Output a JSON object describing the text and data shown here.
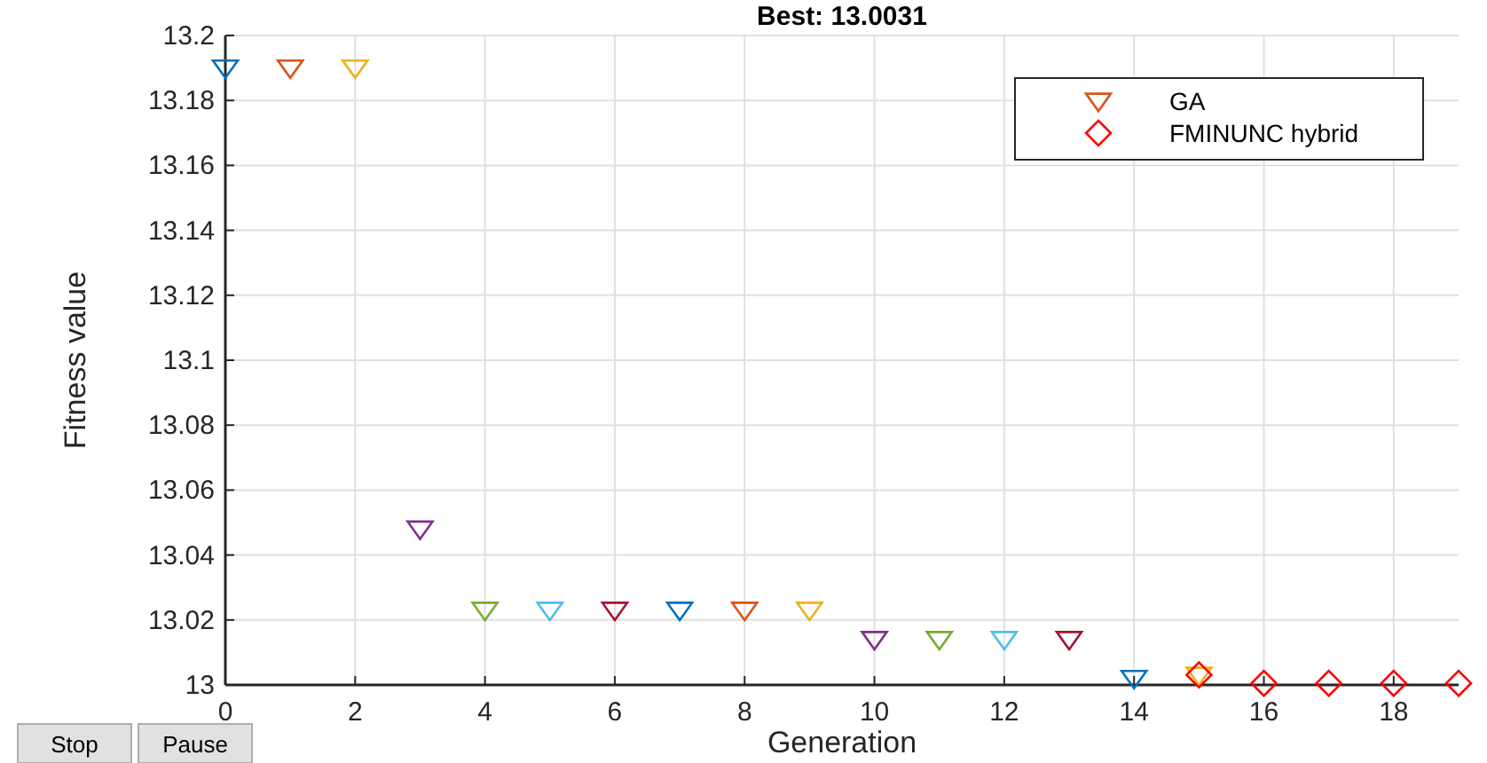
{
  "chart_data": {
    "type": "scatter",
    "title": "Best: 13.0031",
    "xlabel": "Generation",
    "ylabel": "Fitness value",
    "xlim": [
      0,
      19
    ],
    "xticks": [
      0,
      2,
      4,
      6,
      8,
      10,
      12,
      14,
      16,
      18
    ],
    "ylim": [
      13,
      13.2
    ],
    "yticks": [
      13,
      13.02,
      13.04,
      13.06,
      13.08,
      13.1,
      13.12,
      13.14,
      13.16,
      13.18,
      13.2
    ],
    "grid": true,
    "legend": "top right",
    "series": [
      {
        "name": "GA",
        "color": "#d95319",
        "marker": "triangle",
        "x": [
          0,
          1,
          2,
          3,
          4,
          5,
          6,
          7,
          8,
          9,
          10,
          11,
          12,
          13,
          14,
          15
        ],
        "values": [
          13.19,
          13.19,
          13.19,
          13.048,
          13.023,
          13.023,
          13.023,
          13.023,
          13.023,
          13.023,
          13.014,
          13.014,
          13.014,
          13.014,
          13.002,
          13.003
        ],
        "colors": [
          "#0072bd",
          "#d95319",
          "#edb120",
          "#7e2f8e",
          "#77ac30",
          "#4dbeee",
          "#a2142f",
          "#0072bd",
          "#d95319",
          "#edb120",
          "#7e2f8e",
          "#77ac30",
          "#4dbeee",
          "#a2142f",
          "#0072bd",
          "#edb120"
        ]
      },
      {
        "name": "FMINUNC hybrid",
        "color": "#ff0000",
        "marker": "diamond",
        "x": [
          15,
          16,
          17,
          18,
          19
        ],
        "values": [
          13.0031,
          13.0005,
          13.0005,
          13.0005,
          13.0005
        ]
      }
    ],
    "annotations": [
      "Stop",
      "Pause"
    ]
  }
}
